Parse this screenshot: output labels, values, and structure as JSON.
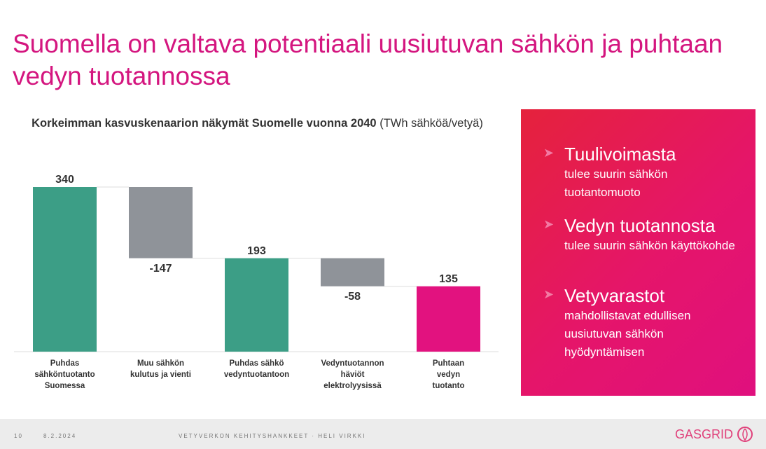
{
  "title": "Suomella on valtava potentiaali uusiutuvan sähkön ja puhtaan vedyn tuotannossa",
  "chart_data": {
    "type": "waterfall",
    "title": "Korkeimman kasvuskenaarion näkymät Suomelle vuonna 2040",
    "unit": "(TWh sähköä/vetyä)",
    "categories": [
      "Puhdas\nsähköntuotanto\nSuomessa",
      "Muu sähkön\nkulutus ja vienti",
      "Puhdas sähkö\nvedyntuotantoon",
      "Vedyntuotannon\nhäviöt\nelektrolyysissä",
      "Puhtaan\nvedyn\ntuotanto"
    ],
    "values": [
      340,
      -147,
      193,
      -58,
      135
    ],
    "totals": [
      true,
      false,
      true,
      false,
      true
    ],
    "colors": [
      "#3c9e86",
      "#8f9399",
      "#3c9e86",
      "#8f9399",
      "#e2127f"
    ]
  },
  "highlights": [
    {
      "heading": "Tuulivoimasta",
      "text": "tulee suurin sähkön tuotantomuoto"
    },
    {
      "heading": "Vedyn tuotannosta",
      "text": "tulee suurin sähkön käyttökohde"
    },
    {
      "heading": "Vetyvarastot",
      "text": "mahdollistavat edullisen uusiutuvan sähkön hyödyntämisen"
    }
  ],
  "footer": {
    "page": "10",
    "date": "8.2.2024",
    "text": "VETYVERKON KEHITYSHANKKEET · HELI VIRKKI",
    "logo": "GASGRID"
  }
}
